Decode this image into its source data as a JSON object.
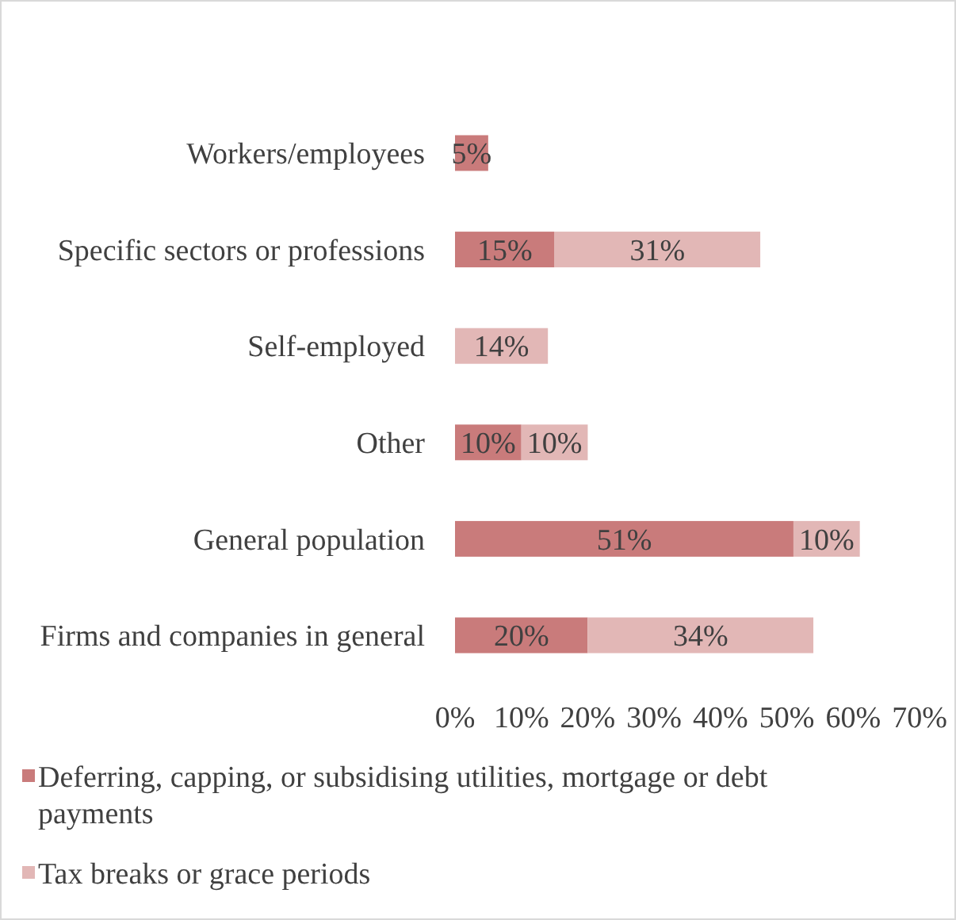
{
  "chart_data": {
    "type": "bar",
    "orientation": "horizontal",
    "stacked": true,
    "categories": [
      "Workers/employees",
      "Specific sectors or professions",
      "Self-employed",
      "Other",
      "General population",
      "Firms and companies in general"
    ],
    "series": [
      {
        "name": "Deferring, capping, or subsidising utilities, mortgage or debt payments",
        "color": "#c97b7b",
        "values": [
          5,
          15,
          null,
          10,
          51,
          20
        ],
        "value_labels": [
          "5%",
          "15%",
          null,
          "10%",
          "51%",
          "20%"
        ]
      },
      {
        "name": "Tax breaks or grace periods",
        "color": "#e2b7b6",
        "values": [
          null,
          31,
          14,
          10,
          10,
          34
        ],
        "value_labels": [
          null,
          "31%",
          "14%",
          "10%",
          "10%",
          "34%"
        ]
      }
    ],
    "xlim": [
      0,
      70
    ],
    "xticks": [
      {
        "value": 0,
        "label": "0%"
      },
      {
        "value": 10,
        "label": "10%"
      },
      {
        "value": 20,
        "label": "20%"
      },
      {
        "value": 30,
        "label": "30%"
      },
      {
        "value": 40,
        "label": "40%"
      },
      {
        "value": 50,
        "label": "50%"
      },
      {
        "value": 60,
        "label": "60%"
      },
      {
        "value": 70,
        "label": "70%"
      }
    ],
    "grid": false,
    "legend": "bottom"
  }
}
